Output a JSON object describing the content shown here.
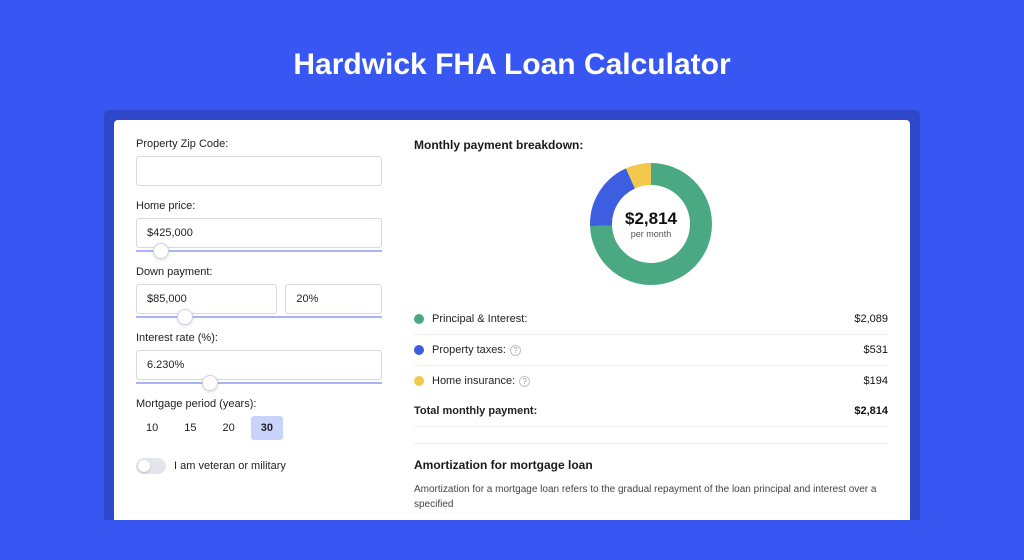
{
  "page": {
    "title": "Hardwick FHA Loan Calculator",
    "background_color": "#3857f2",
    "shadow_color": "#2e48c9"
  },
  "form": {
    "zip": {
      "label": "Property Zip Code:",
      "value": ""
    },
    "home_price": {
      "label": "Home price:",
      "value": "$425,000",
      "slider_pos_pct": 10
    },
    "down_payment": {
      "label": "Down payment:",
      "amount": "$85,000",
      "percent": "20%",
      "slider_pos_pct": 20
    },
    "interest": {
      "label": "Interest rate (%):",
      "value": "6.230%",
      "slider_pos_pct": 30
    },
    "period": {
      "label": "Mortgage period (years):",
      "options": [
        "10",
        "15",
        "20",
        "30"
      ],
      "selected_index": 3
    },
    "veteran": {
      "label": "I am veteran or military",
      "checked": false
    }
  },
  "breakdown": {
    "title": "Monthly payment breakdown:",
    "center_amount": "$2,814",
    "center_sub": "per month",
    "donut": {
      "radius": 50,
      "stroke_width": 22,
      "slices": [
        {
          "name": "principal_interest",
          "fraction": 0.743,
          "color": "#4aa883"
        },
        {
          "name": "property_taxes",
          "fraction": 0.188,
          "color": "#3d5ee0"
        },
        {
          "name": "home_insurance",
          "fraction": 0.069,
          "color": "#f2c94c"
        }
      ]
    },
    "lines": [
      {
        "dot_color": "#4aa883",
        "label": "Principal & Interest:",
        "info": false,
        "value": "$2,089"
      },
      {
        "dot_color": "#3d5ee0",
        "label": "Property taxes:",
        "info": true,
        "value": "$531"
      },
      {
        "dot_color": "#f2c94c",
        "label": "Home insurance:",
        "info": true,
        "value": "$194"
      }
    ],
    "total": {
      "label": "Total monthly payment:",
      "value": "$2,814"
    }
  },
  "amortization": {
    "title": "Amortization for mortgage loan",
    "text": "Amortization for a mortgage loan refers to the gradual repayment of the loan principal and interest over a specified"
  }
}
